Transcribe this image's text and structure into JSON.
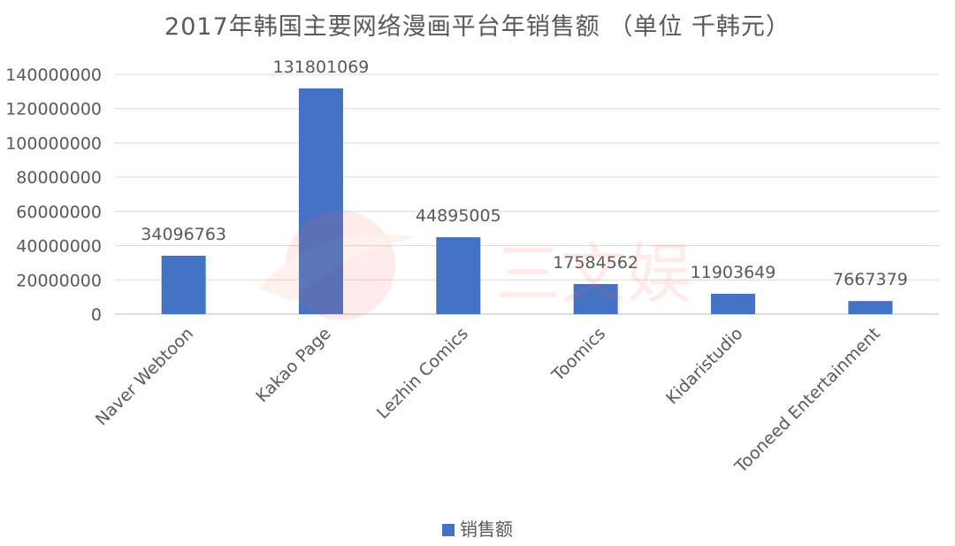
{
  "chart_data": {
    "type": "bar",
    "title": "2017年韩国主要网络漫画平台年销售额 （单位 千韩元）",
    "categories": [
      "Naver Webtoon",
      "Kakao Page",
      "Lezhin Comics",
      "Toomics",
      "Kidaristudio",
      "Tooneed Entertainment"
    ],
    "series": [
      {
        "name": "销售额",
        "values": [
          34096763,
          131801069,
          44895005,
          17584562,
          11903649,
          7667379
        ]
      }
    ],
    "data_labels": [
      "34096763",
      "131801069",
      "44895005",
      "17584562",
      "11903649",
      "7667379"
    ],
    "y_ticks": [
      "0",
      "20000000",
      "40000000",
      "60000000",
      "80000000",
      "100000000",
      "120000000",
      "140000000"
    ],
    "ylim": [
      0,
      140000000
    ],
    "xlabel": "",
    "ylabel": "",
    "grid": true,
    "legend_position": "bottom",
    "bar_color": "#4472c4",
    "grid_color": "#d9d9d9"
  },
  "watermark_text": "三文娱"
}
